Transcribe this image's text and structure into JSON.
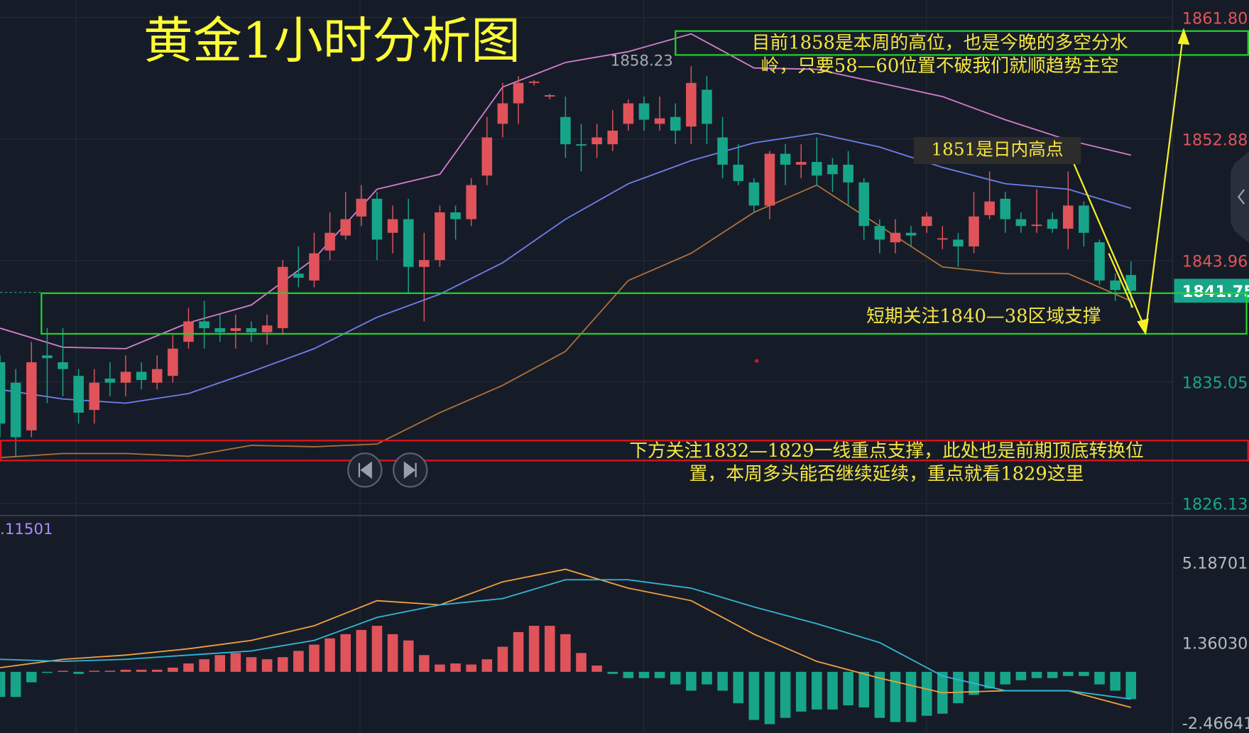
{
  "chart_data": [
    {
      "type": "candlestick",
      "title": "黄金1小时分析图",
      "up_color": "#e0535b",
      "down_color": "#17a58a",
      "ylim": [
        1826.13,
        1861.8
      ],
      "yticks": [
        {
          "value": 1861.8,
          "label": "1861.80"
        },
        1852.88,
        1843.96,
        1835.05,
        1826.13
      ],
      "grid": true,
      "open": [
        1836.5,
        1835,
        1831.5,
        1837,
        1836.5,
        1835.5,
        1833,
        1835.3,
        1835,
        1835.8,
        1835,
        1835.5,
        1838,
        1839.5,
        1839,
        1838.8,
        1839,
        1838.7,
        1839,
        1843,
        1842.5,
        1844.7,
        1845.8,
        1847.2,
        1848.5,
        1846,
        1847,
        1843.5,
        1844,
        1847.5,
        1847,
        1850.2,
        1854,
        1855.5,
        1857,
        1856,
        1854.5,
        1852.5,
        1852.5,
        1852.5,
        1854,
        1855.5,
        1854,
        1854.5,
        1853.8,
        1856.5,
        1853,
        1851,
        1849.7,
        1848,
        1851.8,
        1851,
        1851.2,
        1851,
        1851,
        1849.7,
        1846.5,
        1845.3,
        1846,
        1846.5,
        1845.5,
        1845.5,
        1845,
        1847.3,
        1848.5,
        1847,
        1846.5,
        1847,
        1846.3,
        1848,
        1845.3,
        1842.5,
        1842.9
      ],
      "high": [
        1837,
        1836,
        1838,
        1839,
        1839,
        1836,
        1836,
        1836.5,
        1837,
        1836.5,
        1837,
        1838.5,
        1840.5,
        1841,
        1840,
        1840,
        1839.5,
        1840,
        1844,
        1845,
        1846,
        1847.5,
        1849,
        1849.5,
        1849,
        1848,
        1848.5,
        1846,
        1848,
        1848,
        1850,
        1854.5,
        1857,
        1857.5,
        1857.2,
        1856.2,
        1856,
        1854,
        1854,
        1855,
        1855.8,
        1856,
        1856,
        1855.5,
        1858.23,
        1857.5,
        1854.5,
        1852.5,
        1850,
        1852,
        1852.5,
        1852.5,
        1853,
        1851.5,
        1852,
        1850,
        1847,
        1847,
        1846.5,
        1847.5,
        1846.5,
        1846,
        1849,
        1850.5,
        1849,
        1847.5,
        1849.2,
        1847.5,
        1850.5,
        1848.3,
        1845.5,
        1843,
        1843.9
      ],
      "low": [
        1831,
        1829.5,
        1831,
        1833.5,
        1834,
        1832,
        1832,
        1834,
        1834,
        1834.5,
        1834.5,
        1835,
        1837.5,
        1837.5,
        1838,
        1837.5,
        1838,
        1837.8,
        1838.5,
        1842,
        1842,
        1844,
        1845.5,
        1846.5,
        1844,
        1844.5,
        1841.5,
        1839.5,
        1843.5,
        1845.5,
        1846.5,
        1849.5,
        1853,
        1854,
        1856.8,
        1855.8,
        1851.5,
        1850.5,
        1851.5,
        1852,
        1853.5,
        1853.5,
        1853.5,
        1852.5,
        1852.5,
        1852.5,
        1850,
        1849.5,
        1847.5,
        1847,
        1849.5,
        1850,
        1849.5,
        1849,
        1848,
        1845.5,
        1844.5,
        1844.5,
        1845,
        1846,
        1844.8,
        1843.5,
        1844.5,
        1847,
        1846,
        1846,
        1846,
        1846,
        1844.8,
        1845,
        1842.2,
        1841,
        1840.5
      ],
      "close": [
        1832,
        1831,
        1836.5,
        1836.8,
        1836,
        1832.8,
        1835,
        1835,
        1835.8,
        1835.2,
        1836,
        1837.5,
        1839.5,
        1839,
        1838.7,
        1839,
        1838.7,
        1839.2,
        1843.5,
        1842.7,
        1844.5,
        1846,
        1847,
        1848.5,
        1845.5,
        1847,
        1843.5,
        1844,
        1847.5,
        1847,
        1849.5,
        1853,
        1855.5,
        1857,
        1857.1,
        1856.1,
        1852.5,
        1852.4,
        1853,
        1853.5,
        1855.5,
        1854.3,
        1854.4,
        1853.5,
        1857,
        1854,
        1851,
        1849.8,
        1848,
        1851.8,
        1851,
        1851.2,
        1850.2,
        1850.3,
        1849.7,
        1846.5,
        1845.5,
        1846,
        1845.8,
        1847.2,
        1845.6,
        1845,
        1847.2,
        1848.3,
        1847,
        1846.5,
        1846.6,
        1846.3,
        1848,
        1846,
        1842.5,
        1841.8,
        1841.75
      ],
      "line_x": [
        0,
        4,
        8,
        12,
        16,
        20,
        24,
        28,
        32,
        36,
        40,
        44,
        48,
        52,
        56,
        60,
        64,
        68,
        72
      ],
      "lines": [
        {
          "color": "#d47fcf",
          "values": [
            1839.0,
            1837.6,
            1837.5,
            1839.4,
            1840.7,
            1844.1,
            1849.2,
            1850.3,
            1856.7,
            1858.5,
            1859.3,
            1860.6,
            1858.1,
            1858.0,
            1857.0,
            1856.0,
            1854.3,
            1852.8,
            1851.7
          ]
        },
        {
          "color": "#6f7fef",
          "values": [
            1834.5,
            1833.8,
            1833.5,
            1834.2,
            1835.8,
            1837.5,
            1839.8,
            1841.5,
            1843.8,
            1847,
            1849.6,
            1851.3,
            1852.6,
            1853.3,
            1852.3,
            1850.8,
            1849.6,
            1849.2,
            1847.8
          ]
        },
        {
          "color": "#b0703a",
          "values": [
            1829.5,
            1829.8,
            1829.8,
            1829.6,
            1830.4,
            1830.3,
            1830.5,
            1832.8,
            1834.8,
            1837.3,
            1842.5,
            1844.5,
            1847.5,
            1849.5,
            1846.5,
            1843.5,
            1843,
            1843,
            1841
          ]
        }
      ],
      "annotations": {
        "top_note": [
          "目前1858是本周的高位，也是今晚的多空分水",
          "岭，只要58—60位置不破我们就顺趋势主空"
        ],
        "day_high": "1851是日内高点",
        "support_short": "短期关注1840—38区域支撑",
        "support_low": [
          "下方关注1832—1829一线重点支撑，此处也是前期顶底转换位",
          "置，本周多头能否继续延续，重点就看1829这里"
        ]
      }
    },
    {
      "type": "macd",
      "indicator_value": ".11501",
      "ylim": [
        -2.46641,
        5.18701
      ],
      "yticks": [
        5.18701,
        {
          "value": 1.3603,
          "label": "1.36030"
        },
        -2.46641
      ],
      "up_color": "#e0535b",
      "down_color": "#17a58a",
      "histogram": [
        -1.2,
        -1.2,
        -0.5,
        -0.05,
        0.05,
        -0.1,
        0.05,
        0.05,
        0.1,
        0.1,
        0.1,
        0.2,
        0.4,
        0.6,
        0.8,
        0.9,
        0.7,
        0.6,
        0.7,
        1.0,
        1.3,
        1.6,
        1.8,
        2.0,
        2.2,
        1.8,
        1.5,
        0.8,
        0.35,
        0.4,
        0.35,
        0.6,
        1.2,
        1.9,
        2.2,
        2.2,
        1.8,
        0.9,
        0.3,
        -0.1,
        -0.3,
        -0.3,
        -0.3,
        -0.6,
        -0.9,
        -0.6,
        -0.9,
        -1.5,
        -2.3,
        -2.5,
        -2.2,
        -1.9,
        -1.8,
        -1.8,
        -1.6,
        -1.7,
        -2.2,
        -2.4,
        -2.4,
        -2.1,
        -2.0,
        -1.5,
        -1.1,
        -0.8,
        -0.6,
        -0.4,
        -0.3,
        -0.3,
        -0.2,
        -0.2,
        -0.6,
        -0.9,
        -1.3
      ],
      "line_x": [
        0,
        4,
        8,
        12,
        16,
        20,
        24,
        28,
        32,
        36,
        40,
        44,
        48,
        52,
        56,
        60,
        64,
        68,
        72
      ],
      "lines": [
        {
          "color": "#f2a040",
          "values": [
            0.2,
            0.6,
            0.8,
            1.1,
            1.5,
            2.2,
            3.4,
            3.2,
            4.3,
            4.9,
            4.0,
            3.4,
            1.8,
            0.5,
            -0.3,
            -1.0,
            -0.9,
            -0.9,
            -1.7
          ]
        },
        {
          "color": "#33b6d8",
          "values": [
            0.6,
            0.5,
            0.6,
            0.8,
            1.0,
            1.5,
            2.6,
            3.2,
            3.5,
            4.4,
            4.4,
            4.0,
            3.1,
            2.3,
            1.4,
            -0.2,
            -0.9,
            -0.9,
            -1.3
          ]
        }
      ]
    }
  ]
}
